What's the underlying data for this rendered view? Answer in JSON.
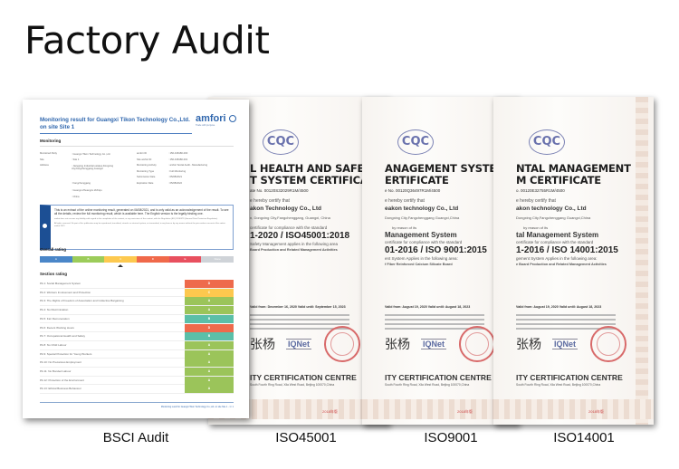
{
  "page_title": "Factory Audit",
  "labels": [
    "BSCI Audit",
    "ISO45001",
    "ISO9001",
    "ISO14001"
  ],
  "colors": {
    "A": "#4a86c8",
    "B": "#9ccc5a",
    "C": "#fdc94f",
    "D": "#f0694a",
    "E": "#e8505f",
    "None": "#cfd3d8",
    "sec_A": "#9bc45a",
    "sec_B": "#5bbfa8",
    "sec_C": "#fdc84e",
    "sec_D": "#ee6a4c",
    "brand": "#2f66ad"
  },
  "bsci": {
    "title": "Monitoring result for Guangxi Tikon Technology Co.,Ltd. on site Site 1",
    "logo": "amfori",
    "logo_tag": "Trade with purpose",
    "monitoring_heading": "Monitoring",
    "fields_left": [
      [
        "Monitored Party",
        ": Guangxi Tikon Technology Co.,Ltd."
      ],
      [
        "Site",
        ": Site 1"
      ],
      [
        "Address",
        ": Jiangping Industrial estates,Dongxing city,Fangchenggang,Guangxi"
      ],
      [
        "",
        ": Fangchenggang"
      ],
      [
        "",
        ": Guangxi Zhuangzu Zizhiqu"
      ],
      [
        "",
        ": China"
      ]
    ],
    "fields_right": [
      [
        "amfori ID",
        ": 156-018180-000"
      ],
      [
        "Site amfori ID",
        ": 156-018180-001"
      ],
      [
        "Monitoring Activity",
        ": amfori Social Audit - Manufacturing"
      ],
      [
        "Monitoring Type",
        ": Full Monitoring"
      ],
      [
        "Submission Date",
        ": 05/08/2021"
      ],
      [
        "Expiration Date",
        ": 05/08/2022"
      ]
    ],
    "notice": "This is an extract of the online monitoring result, generated on 06/08/2021, and is only valid as an acknowledgement of the result. To see all the details, review the full monitoring result, which is available here. The English version is the legally binding one.",
    "notice_small1": "amfori does not assume any liability with regard to the completion of the content, or any omissions of the content, with the Regulation (EU) 2016/679 (General Data Protection Regulation).",
    "notice_small2": "All rights reserved. No part of this publication may be reproduced, translated, stored in a retrieval system, or transmitted, in any form or by any means without the prior written consent of the amfori. amfori 2021",
    "overall_heading": "Overall rating",
    "overall_scale": [
      "A",
      "B",
      "C",
      "D",
      "E",
      "None"
    ],
    "overall_selected": "C",
    "section_heading": "Section rating",
    "sections": [
      {
        "name": "PA 1: Social Management System",
        "rating": "D"
      },
      {
        "name": "PA 2: Workers Involvement and Protection",
        "rating": "C"
      },
      {
        "name": "PA 3: The Rights of Freedom of Association and Collective Bargaining",
        "rating": "A"
      },
      {
        "name": "PA 4: No Discrimination",
        "rating": "A"
      },
      {
        "name": "PA 5: Fair Remuneration",
        "rating": "B"
      },
      {
        "name": "PA 6: Decent Working Hours",
        "rating": "D"
      },
      {
        "name": "PA 7: Occupational Health and Safety",
        "rating": "B"
      },
      {
        "name": "PA 8: No Child Labour",
        "rating": "A"
      },
      {
        "name": "PA 9: Special Protection for Young Workers",
        "rating": "A"
      },
      {
        "name": "PA 10: No Precarious Employment",
        "rating": "A"
      },
      {
        "name": "PA 11: No Bonded Labour",
        "rating": "A"
      },
      {
        "name": "PA 12: Protection of the Environment",
        "rating": "A"
      },
      {
        "name": "PA 13: Ethical Business Behaviour",
        "rating": "A"
      }
    ],
    "footer": "Monitoring result for Guangxi Tikon Technology Co.,Ltd. on site Site 1 - 1 / 1"
  },
  "certs": [
    {
      "logo": "CQC",
      "title1": "L HEALTH AND SAFETY",
      "title2": "T SYSTEM CERTIFICATE",
      "cert_no": "ate No. 00120S32029R1M/4500",
      "certify": "e hereby certify that",
      "company": "akon Technology Co., Ltd",
      "address": "n, Dongxing City,Fangchenggang, Guangxi, China",
      "compliance": "certificate for compliance with the standard",
      "standard": "1-2020 / ISO45001:2018",
      "applies": "Safety Management applies in the following area",
      "scope": "Board Production and Related Management Activities",
      "valid": "Valid from: December 16, 2020   Valid until: September 15, 2023",
      "iqnet": "IQNet",
      "centre": "ITY CERTIFICATION CENTRE",
      "centre_addr": "South Fourth Ring Road, Xila West Road, Beijing 100070,China",
      "edition": "2018年版"
    },
    {
      "logo": "CQC",
      "title1": "ANAGEMENT SYSTEM",
      "title2": "ERTIFICATE",
      "cert_no": "e No. 00120Q36497R1M/4500",
      "certify": "e hereby certify that",
      "company": "eakon technology Co., Ltd",
      "address": "Dongxing City,Fangchenggang Guangxi,China",
      "reason": "by reason of its",
      "system": "Management System",
      "compliance": "certificate for compliance with the standard",
      "standard": "01-2016 / ISO 9001:2015",
      "applies": "ent System Applies in the following area:",
      "scope": "f Fiber Reinforced Calcium Silicate Board",
      "valid": "Valid from: August 19, 2020   Valid until: August 18, 2023",
      "iqnet": "IQNet",
      "centre": "ITY CERTIFICATION CENTRE",
      "centre_addr": "South Fourth Ring Road, Xila West Road, Beijing 100070,China",
      "edition": "2018年版"
    },
    {
      "logo": "CQC",
      "title1": "NTAL MANAGEMENT",
      "title2": "M CERTIFICATE",
      "cert_no": "o. 00120E32755R1M/4500",
      "certify": "e hereby certify that",
      "company": "akon technology Co., Ltd",
      "address": "Dongxing City,Fangchenggang Guangxi,China",
      "reason": "by reason of its",
      "system": "tal Management System",
      "compliance": "certificate for compliance with the standard",
      "standard": "1-2016 / ISO 14001:2015",
      "applies": "gement System Applies in the following area:",
      "scope": "e Board Production and Related Management Activities",
      "valid": "Valid from: August 19, 2020   Valid until: August 18, 2023",
      "iqnet": "IQNet",
      "centre": "ITY CERTIFICATION CENTRE",
      "centre_addr": "South Fourth Ring Road, Xila West Road, Beijing 100070,China",
      "edition": "2018年版"
    }
  ]
}
